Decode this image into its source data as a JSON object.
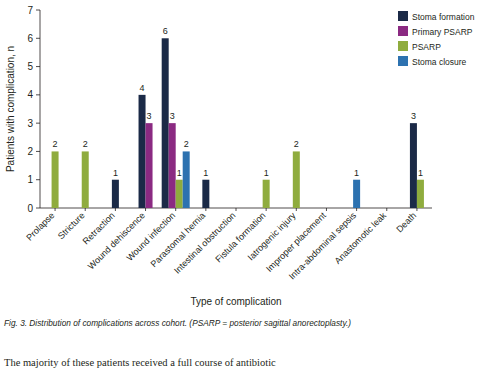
{
  "chart_data": {
    "type": "bar",
    "ylabel": "Patients with complication, n",
    "xlabel": "Type of complication",
    "caption": "Fig. 3. Distribution of complications across cohort. (PSARP = posterior sagittal anorectoplasty.)",
    "body_text": "The majority of these patients received a full course of antibiotic",
    "categories": [
      "Prolapse",
      "Stricture",
      "Retraction",
      "Wound dehiscence",
      "Wound infection",
      "Parastomal hernia",
      "Intestinal obstruction",
      "Fistula formation",
      "Iatrogenic injury",
      "Improper placement",
      "Intra-abdominal sepsis",
      "Anastomotic leak",
      "Death"
    ],
    "series": [
      {
        "name": "Stoma formation",
        "color": "#1b2a47",
        "values": [
          null,
          null,
          1,
          4,
          6,
          1,
          null,
          null,
          null,
          null,
          null,
          null,
          3
        ]
      },
      {
        "name": "Primary PSARP",
        "color": "#8b2a82",
        "values": [
          null,
          null,
          null,
          3,
          3,
          null,
          null,
          null,
          null,
          null,
          null,
          null,
          null
        ]
      },
      {
        "name": "PSARP",
        "color": "#8fac3e",
        "values": [
          2,
          2,
          null,
          null,
          1,
          null,
          null,
          1,
          2,
          null,
          null,
          null,
          1
        ]
      },
      {
        "name": "Stoma closure",
        "color": "#2d72b0",
        "values": [
          null,
          null,
          null,
          null,
          2,
          null,
          null,
          null,
          null,
          null,
          1,
          null,
          null
        ]
      }
    ],
    "ylim": [
      0,
      7
    ],
    "yticks": [
      0,
      1,
      2,
      3,
      4,
      5,
      6,
      7
    ],
    "grid": false,
    "data_labels": true,
    "legend": "upper right"
  }
}
